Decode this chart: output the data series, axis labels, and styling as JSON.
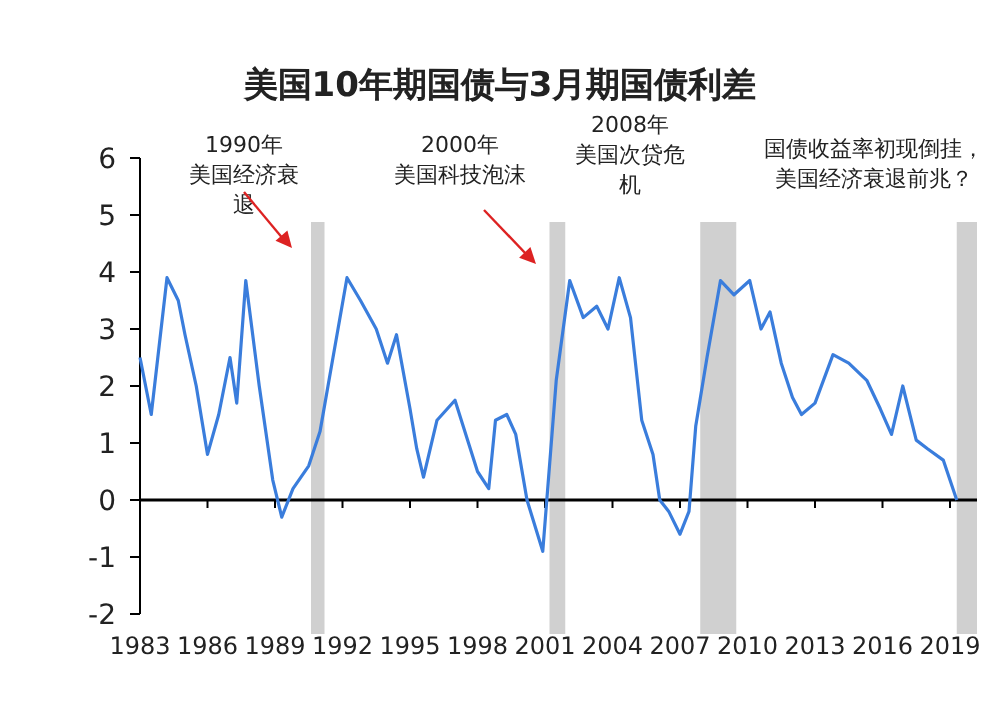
{
  "chart_data": {
    "type": "line",
    "title": "美国10年期国债与3月期国债利差",
    "annotations": [
      "1990年美国经济衰退",
      "2000年美国科技泡沫",
      "2008年美国次贷危机",
      "国债收益率初现倒挂，美国经济衰退前兆？"
    ],
    "series": [
      {
        "color": "#3a7ddc",
        "x": [
          1983.0,
          1983.5,
          1984.2,
          1984.7,
          1985.0,
          1985.5,
          1986.0,
          1986.5,
          1987.0,
          1987.3,
          1987.7,
          1988.3,
          1988.9,
          1989.3,
          1989.8,
          1990.5,
          1991.0,
          1991.4,
          1991.8,
          1992.2,
          1992.8,
          1993.5,
          1994.0,
          1994.4,
          1995.0,
          1995.3,
          1995.6,
          1996.2,
          1997.0,
          1997.6,
          1998.0,
          1998.5,
          1998.8,
          1999.3,
          1999.7,
          2000.2,
          2000.9,
          2001.5,
          2002.1,
          2002.7,
          2003.3,
          2003.8,
          2004.3,
          2004.8,
          2005.3,
          2005.8,
          2006.1,
          2006.5,
          2007.0,
          2007.4,
          2007.7,
          2008.2,
          2008.8,
          2009.4,
          2010.1,
          2010.6,
          2011.0,
          2011.5,
          2012.0,
          2012.4,
          2013.0,
          2013.8,
          2014.5,
          2015.3,
          2015.9,
          2016.4,
          2016.9,
          2017.5,
          2018.0,
          2018.7,
          2019.3
        ],
        "values": [
          2.5,
          1.5,
          3.9,
          3.5,
          2.9,
          2.0,
          0.8,
          1.5,
          2.5,
          1.7,
          3.85,
          2.0,
          0.35,
          -0.3,
          0.2,
          0.6,
          1.2,
          2.1,
          3.0,
          3.9,
          3.5,
          3.0,
          2.4,
          2.9,
          1.6,
          0.9,
          0.4,
          1.4,
          1.75,
          1.0,
          0.5,
          0.2,
          1.4,
          1.5,
          1.15,
          0.0,
          -0.9,
          2.1,
          3.85,
          3.2,
          3.4,
          3.0,
          3.9,
          3.2,
          1.4,
          0.8,
          0.0,
          -0.2,
          -0.6,
          -0.2,
          1.3,
          2.5,
          3.85,
          3.6,
          3.85,
          3.0,
          3.3,
          2.4,
          1.8,
          1.5,
          1.7,
          2.55,
          2.4,
          2.1,
          1.6,
          1.15,
          2.0,
          1.05,
          0.9,
          0.7,
          0.0
        ]
      }
    ],
    "bands": [
      {
        "axis": "x",
        "from": 1990.6,
        "to": 1991.2,
        "color": "#d0d0d0"
      },
      {
        "axis": "x",
        "from": 2001.2,
        "to": 2001.9,
        "color": "#d0d0d0"
      },
      {
        "axis": "x",
        "from": 2007.9,
        "to": 2009.5,
        "color": "#d0d0d0"
      },
      {
        "axis": "x",
        "from": 2019.3,
        "to": 2020.2,
        "color": "#d0d0d0"
      }
    ],
    "xlim": [
      1983,
      2020.2
    ],
    "xticks": [
      1983,
      1986,
      1989,
      1992,
      1995,
      1998,
      2001,
      2004,
      2007,
      2010,
      2013,
      2016,
      2019
    ],
    "ylim": [
      -2,
      6
    ],
    "yticks": [
      -2,
      -1,
      0,
      1,
      2,
      3,
      4,
      5,
      6
    ],
    "marker": "none",
    "line_style": "solid"
  }
}
